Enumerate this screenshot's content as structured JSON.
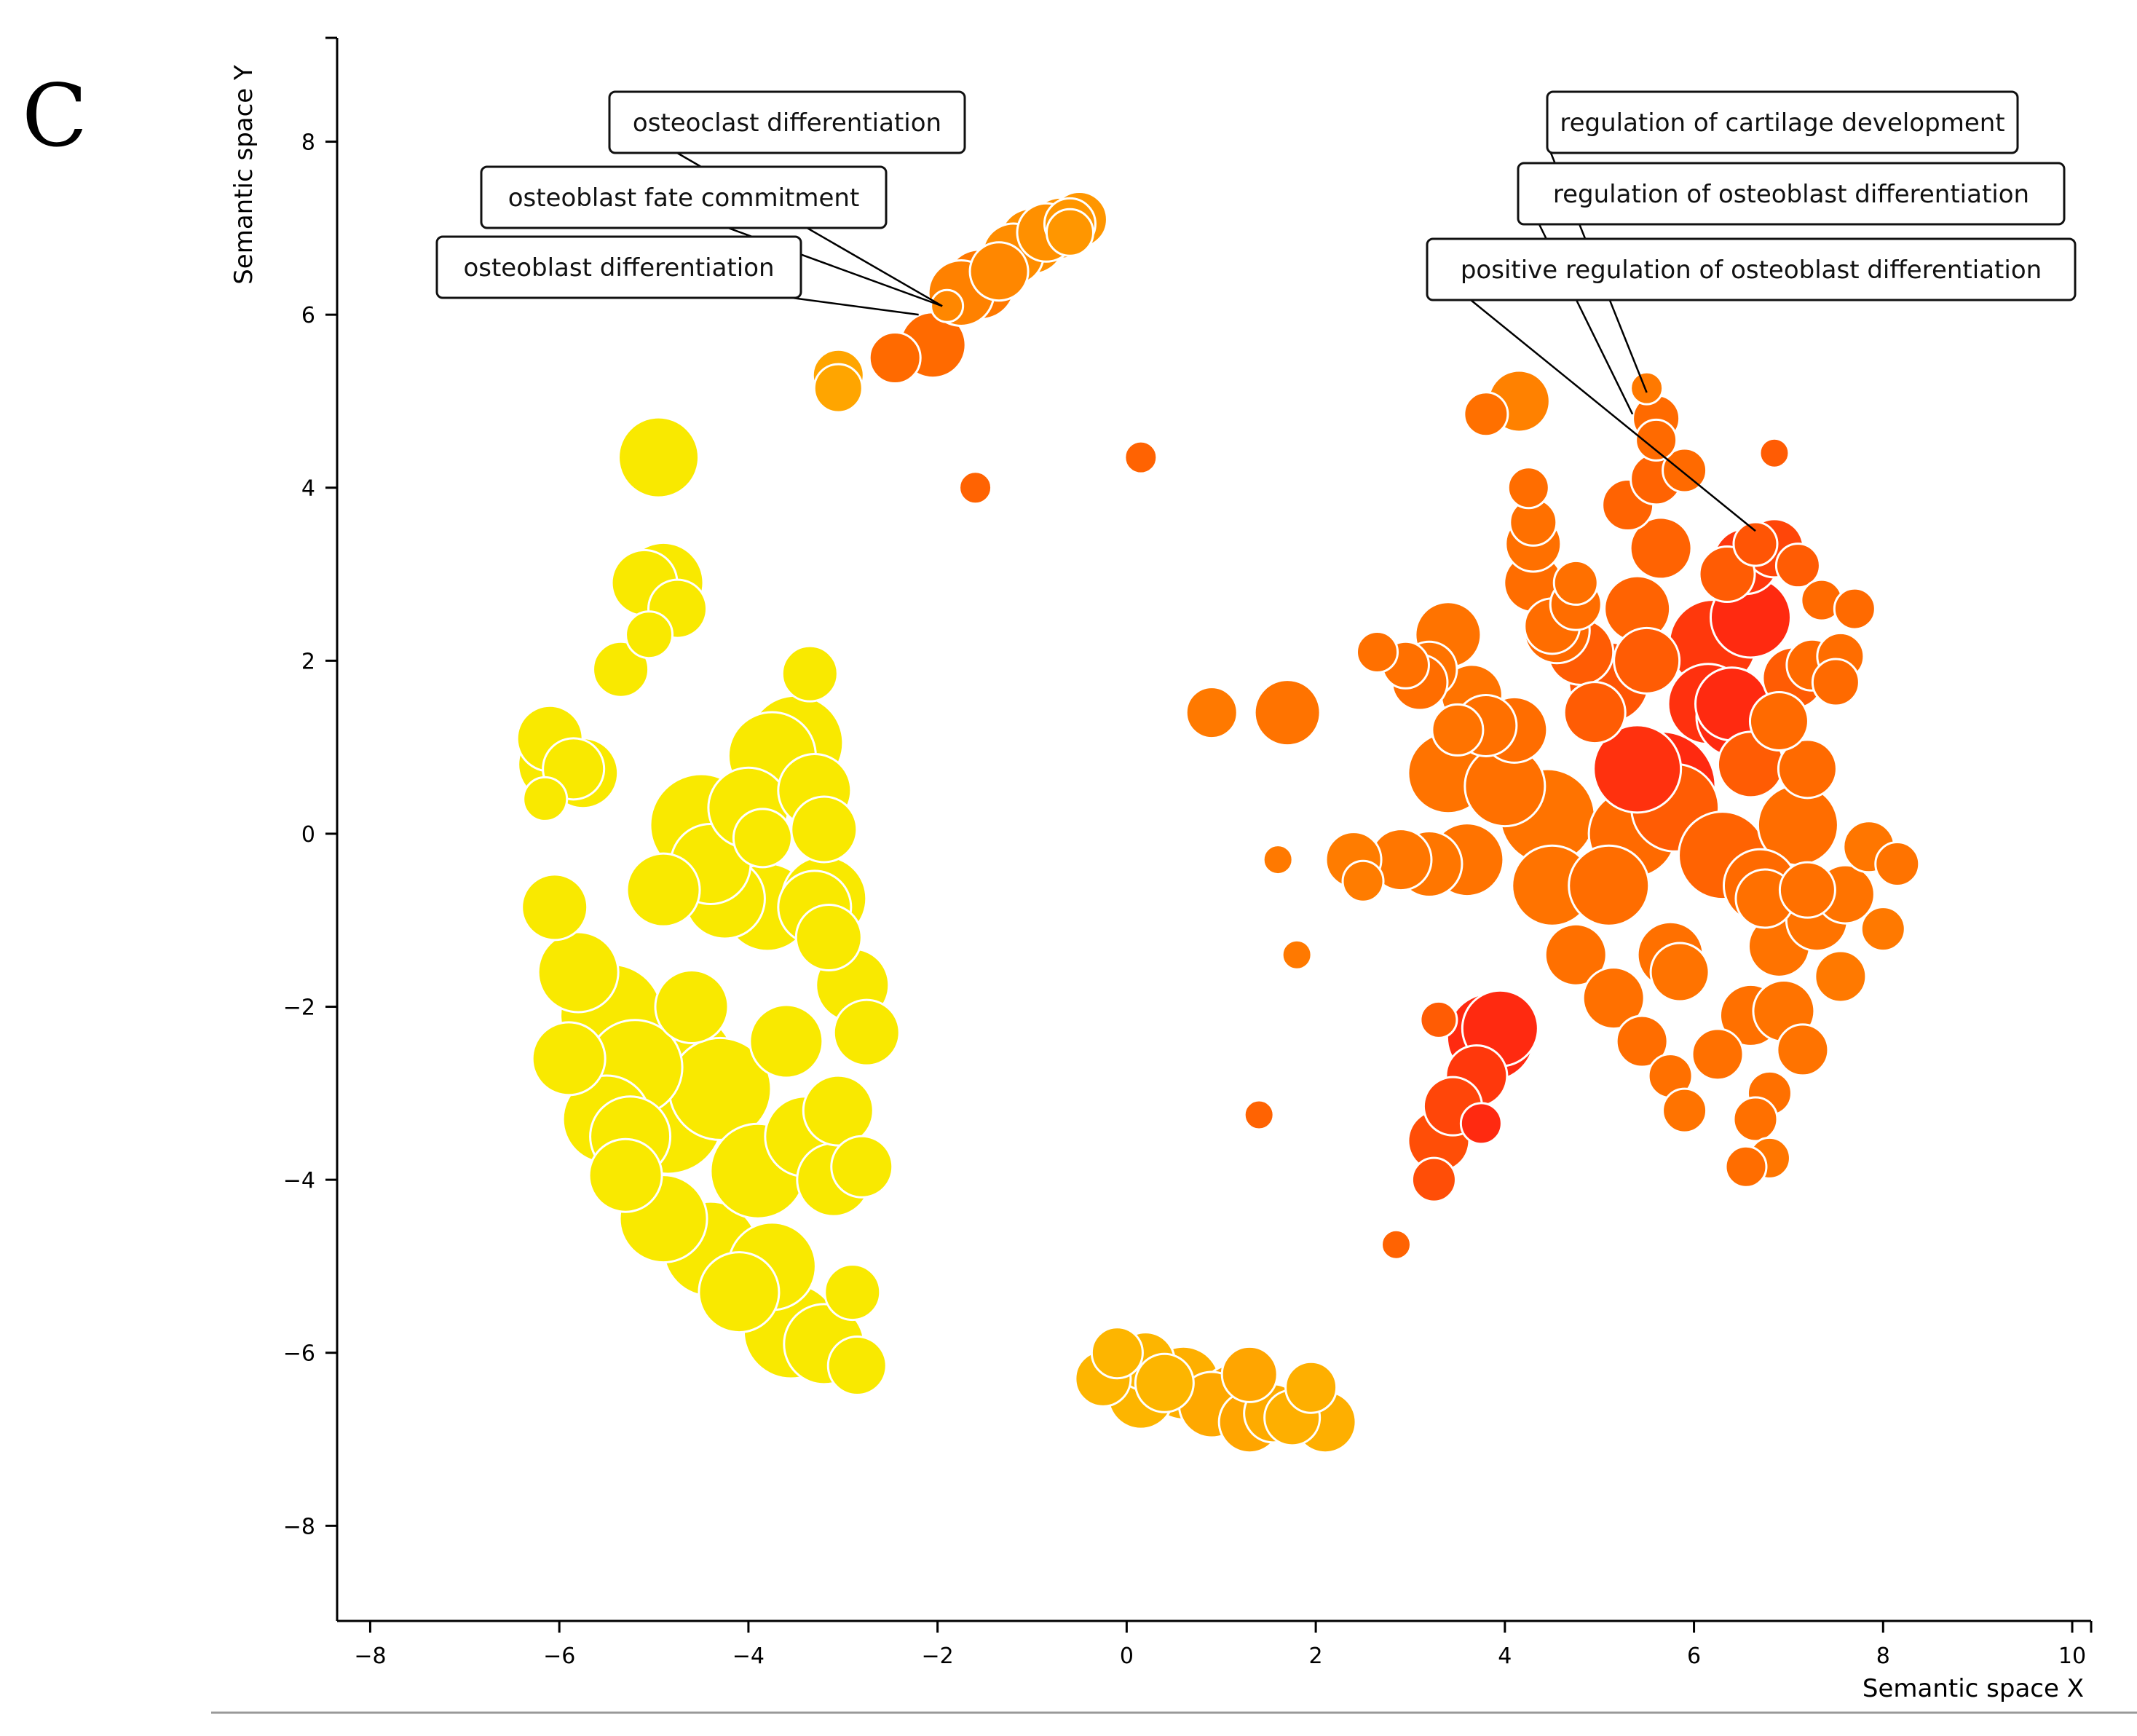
{
  "panel_label": "C",
  "chart_data": {
    "type": "scatter",
    "xlabel": "Semantic space X",
    "ylabel": "Semantic space Y",
    "xlim": [
      -8.35,
      10.2
    ],
    "ylim": [
      -9.1,
      9.2
    ],
    "x_ticks": [
      -8,
      -6,
      -4,
      -2,
      0,
      2,
      4,
      6,
      8,
      10
    ],
    "y_ticks": [
      -8,
      -6,
      -4,
      -2,
      0,
      2,
      4,
      6,
      8
    ],
    "grid": false,
    "color_scale": {
      "low": "#f9e900",
      "mid": "#ffa000",
      "high": "#ff6a00",
      "top": "#ff2a10"
    },
    "annotations": [
      {
        "text": "osteoclast differentiation",
        "x": -1.95,
        "y": 6.1
      },
      {
        "text": "osteoblast fate commitment",
        "x": -1.95,
        "y": 6.1
      },
      {
        "text": "osteoblast differentiation",
        "x": -2.2,
        "y": 6.0
      },
      {
        "text": "regulation of cartilage development",
        "x": 5.5,
        "y": 5.1
      },
      {
        "text": "regulation of osteoblast differentiation",
        "x": 5.35,
        "y": 4.85
      },
      {
        "text": "positive regulation of osteoblast differentiation",
        "x": 6.65,
        "y": 3.5
      }
    ],
    "points": [
      [
        -4.95,
        4.35,
        55,
        0.0
      ],
      [
        -5.1,
        2.9,
        45,
        0.0
      ],
      [
        -4.75,
        2.6,
        40,
        0.0
      ],
      [
        -4.9,
        2.9,
        55,
        0.0
      ],
      [
        -5.35,
        1.9,
        38,
        0.0
      ],
      [
        -5.05,
        2.3,
        32,
        0.0
      ],
      [
        -3.35,
        1.85,
        38,
        0.0
      ],
      [
        -6.1,
        1.1,
        45,
        0.0
      ],
      [
        -6.05,
        0.8,
        50,
        0.0
      ],
      [
        -5.85,
        0.75,
        42,
        0.0
      ],
      [
        -6.15,
        0.4,
        30,
        0.0
      ],
      [
        -5.75,
        0.7,
        48,
        0.0
      ],
      [
        -6.05,
        -0.85,
        45,
        0.0
      ],
      [
        -5.8,
        -1.6,
        55,
        0.0
      ],
      [
        -5.9,
        -2.6,
        50,
        0.0
      ],
      [
        -5.45,
        -2.1,
        70,
        0.0
      ],
      [
        -5.2,
        -2.7,
        65,
        0.0
      ],
      [
        -5.5,
        -3.3,
        60,
        0.0
      ],
      [
        -5.3,
        -3.95,
        50,
        0.0
      ],
      [
        -4.85,
        -3.3,
        75,
        0.0
      ],
      [
        -4.75,
        -2.7,
        80,
        0.0
      ],
      [
        -4.9,
        -4.45,
        60,
        0.0
      ],
      [
        -4.4,
        -4.8,
        65,
        0.0
      ],
      [
        -4.1,
        -5.3,
        55,
        0.0
      ],
      [
        -3.75,
        -5.0,
        60,
        0.0
      ],
      [
        -3.55,
        -5.75,
        65,
        0.0
      ],
      [
        -3.2,
        -5.9,
        55,
        0.0
      ],
      [
        -2.85,
        -6.15,
        40,
        0.0
      ],
      [
        -2.9,
        -5.3,
        38,
        0.0
      ],
      [
        -4.3,
        -2.95,
        70,
        0.0
      ],
      [
        -3.9,
        -3.9,
        65,
        0.0
      ],
      [
        -3.4,
        -3.5,
        55,
        0.0
      ],
      [
        -3.1,
        -4.0,
        50,
        0.0
      ],
      [
        -2.8,
        -3.85,
        42,
        0.0
      ],
      [
        -3.05,
        -3.2,
        48,
        0.0
      ],
      [
        -3.6,
        -2.4,
        50,
        0.0
      ],
      [
        -2.75,
        -2.3,
        45,
        0.0
      ],
      [
        -2.9,
        -1.75,
        50,
        0.0
      ],
      [
        -3.15,
        -1.2,
        45,
        0.0
      ],
      [
        -3.3,
        -0.85,
        50,
        0.0
      ],
      [
        -3.8,
        -0.85,
        60,
        0.0
      ],
      [
        -4.25,
        -0.75,
        55,
        0.0
      ],
      [
        -4.9,
        -0.65,
        50,
        0.0
      ],
      [
        -4.4,
        -0.35,
        55,
        0.0
      ],
      [
        -4.5,
        0.1,
        70,
        0.0
      ],
      [
        -4.0,
        0.3,
        55,
        0.0
      ],
      [
        -3.75,
        0.9,
        60,
        0.0
      ],
      [
        -3.5,
        1.05,
        65,
        0.0
      ],
      [
        -3.3,
        0.5,
        50,
        0.0
      ],
      [
        -3.2,
        0.05,
        45,
        0.0
      ],
      [
        -3.85,
        -0.05,
        40,
        0.0
      ],
      [
        -3.2,
        -0.75,
        58,
        0.0
      ],
      [
        -5.25,
        -3.5,
        55,
        0.0
      ],
      [
        -4.6,
        -2.0,
        50,
        0.0
      ],
      [
        -3.05,
        5.3,
        35,
        0.42
      ],
      [
        -3.05,
        5.15,
        33,
        0.42
      ],
      [
        -2.45,
        5.5,
        35,
        0.82
      ],
      [
        -2.05,
        5.65,
        45,
        0.82
      ],
      [
        -1.9,
        6.1,
        22,
        0.62
      ],
      [
        -1.75,
        6.25,
        45,
        0.66
      ],
      [
        -1.55,
        6.35,
        48,
        0.72
      ],
      [
        -1.35,
        6.5,
        40,
        0.62
      ],
      [
        -1.2,
        6.7,
        42,
        0.58
      ],
      [
        -1.0,
        6.85,
        45,
        0.56
      ],
      [
        -0.85,
        6.95,
        40,
        0.56
      ],
      [
        -0.7,
        7.0,
        42,
        0.54
      ],
      [
        -0.6,
        7.05,
        35,
        0.52
      ],
      [
        -0.5,
        7.1,
        38,
        0.52
      ],
      [
        -0.6,
        6.95,
        32,
        0.52
      ],
      [
        -1.6,
        4.0,
        22,
        0.84
      ],
      [
        0.15,
        4.35,
        22,
        0.84
      ],
      [
        -0.25,
        -6.3,
        38,
        0.32
      ],
      [
        -0.1,
        -6.0,
        35,
        0.32
      ],
      [
        0.2,
        -6.1,
        40,
        0.32
      ],
      [
        0.4,
        -6.35,
        40,
        0.32
      ],
      [
        0.15,
        -6.5,
        45,
        0.32
      ],
      [
        0.6,
        -6.35,
        50,
        0.36
      ],
      [
        0.9,
        -6.6,
        45,
        0.4
      ],
      [
        1.15,
        -6.55,
        50,
        0.44
      ],
      [
        1.3,
        -6.8,
        42,
        0.42
      ],
      [
        1.55,
        -6.7,
        40,
        0.38
      ],
      [
        1.75,
        -6.75,
        38,
        0.36
      ],
      [
        2.1,
        -6.8,
        42,
        0.36
      ],
      [
        1.95,
        -6.4,
        35,
        0.36
      ],
      [
        1.3,
        -6.25,
        38,
        0.42
      ],
      [
        1.4,
        -3.25,
        20,
        0.84
      ],
      [
        2.85,
        -4.75,
        20,
        0.84
      ],
      [
        1.8,
        -1.4,
        20,
        0.72
      ],
      [
        1.6,
        -0.3,
        20,
        0.72
      ],
      [
        0.9,
        1.4,
        35,
        0.72
      ],
      [
        1.7,
        1.4,
        45,
        0.76
      ],
      [
        3.85,
        -2.35,
        60,
        1.0
      ],
      [
        3.95,
        -2.25,
        52,
        1.0
      ],
      [
        3.7,
        -2.8,
        42,
        0.96
      ],
      [
        3.45,
        -3.15,
        40,
        0.92
      ],
      [
        3.3,
        -3.55,
        42,
        0.9
      ],
      [
        3.25,
        -4.0,
        30,
        0.9
      ],
      [
        3.75,
        -3.35,
        28,
        1.0
      ],
      [
        3.3,
        -2.15,
        25,
        0.86
      ],
      [
        2.4,
        -0.3,
        38,
        0.7
      ],
      [
        2.5,
        -0.55,
        28,
        0.7
      ],
      [
        2.9,
        -0.3,
        42,
        0.74
      ],
      [
        3.2,
        -0.35,
        45,
        0.74
      ],
      [
        3.6,
        -0.3,
        50,
        0.76
      ],
      [
        3.4,
        0.7,
        55,
        0.76
      ],
      [
        4.0,
        0.55,
        55,
        0.78
      ],
      [
        4.45,
        0.2,
        65,
        0.76
      ],
      [
        4.5,
        -0.6,
        55,
        0.76
      ],
      [
        4.75,
        -1.4,
        42,
        0.78
      ],
      [
        5.15,
        -1.9,
        42,
        0.78
      ],
      [
        5.45,
        -2.4,
        35,
        0.8
      ],
      [
        5.75,
        -1.4,
        45,
        0.78
      ],
      [
        5.85,
        -1.6,
        40,
        0.76
      ],
      [
        5.75,
        -2.8,
        30,
        0.78
      ],
      [
        5.9,
        -3.2,
        30,
        0.76
      ],
      [
        6.25,
        -2.55,
        35,
        0.78
      ],
      [
        6.6,
        -2.1,
        42,
        0.78
      ],
      [
        6.95,
        -2.05,
        42,
        0.76
      ],
      [
        7.15,
        -2.5,
        35,
        0.76
      ],
      [
        6.8,
        -3.0,
        30,
        0.78
      ],
      [
        6.65,
        -3.3,
        30,
        0.78
      ],
      [
        6.8,
        -3.75,
        28,
        0.74
      ],
      [
        6.55,
        -3.85,
        28,
        0.8
      ],
      [
        6.9,
        -1.3,
        42,
        0.76
      ],
      [
        7.3,
        -1.0,
        42,
        0.76
      ],
      [
        7.6,
        -0.7,
        40,
        0.76
      ],
      [
        7.55,
        -1.65,
        35,
        0.72
      ],
      [
        8.0,
        -1.1,
        30,
        0.72
      ],
      [
        7.85,
        -0.15,
        35,
        0.74
      ],
      [
        8.15,
        -0.35,
        30,
        0.76
      ],
      [
        5.1,
        -0.6,
        55,
        0.8
      ],
      [
        5.35,
        0.0,
        60,
        0.82
      ],
      [
        5.8,
        0.3,
        60,
        0.86
      ],
      [
        6.3,
        -0.25,
        60,
        0.84
      ],
      [
        6.7,
        -0.6,
        50,
        0.82
      ],
      [
        7.1,
        0.1,
        55,
        0.8
      ],
      [
        6.75,
        -0.75,
        40,
        0.78
      ],
      [
        7.2,
        0.75,
        40,
        0.82
      ],
      [
        6.9,
        1.3,
        40,
        0.82
      ],
      [
        5.65,
        0.55,
        75,
        1.0
      ],
      [
        5.4,
        0.75,
        60,
        0.98
      ],
      [
        6.15,
        1.5,
        55,
        0.98
      ],
      [
        6.45,
        1.35,
        55,
        1.0
      ],
      [
        6.6,
        2.5,
        55,
        1.0
      ],
      [
        6.2,
        2.2,
        60,
        0.96
      ],
      [
        6.55,
        3.15,
        45,
        0.96
      ],
      [
        6.85,
        3.3,
        40,
        0.92
      ],
      [
        6.65,
        3.35,
        30,
        0.88
      ],
      [
        7.1,
        3.1,
        30,
        0.86
      ],
      [
        7.35,
        2.7,
        28,
        0.82
      ],
      [
        7.7,
        2.6,
        28,
        0.82
      ],
      [
        7.55,
        2.05,
        32,
        0.8
      ],
      [
        7.25,
        1.95,
        35,
        0.82
      ],
      [
        7.5,
        1.75,
        32,
        0.82
      ],
      [
        7.05,
        1.8,
        42,
        0.86
      ],
      [
        6.85,
        4.4,
        20,
        0.86
      ],
      [
        5.3,
        3.8,
        35,
        0.84
      ],
      [
        5.65,
        3.3,
        42,
        0.84
      ],
      [
        5.4,
        2.6,
        45,
        0.84
      ],
      [
        5.5,
        2.0,
        45,
        0.86
      ],
      [
        5.1,
        1.75,
        55,
        0.88
      ],
      [
        4.8,
        2.1,
        45,
        0.86
      ],
      [
        4.95,
        1.4,
        42,
        0.86
      ],
      [
        4.55,
        2.35,
        45,
        0.82
      ],
      [
        4.3,
        2.9,
        40,
        0.8
      ],
      [
        4.5,
        2.4,
        38,
        0.8
      ],
      [
        4.75,
        2.65,
        35,
        0.8
      ],
      [
        4.3,
        3.35,
        38,
        0.78
      ],
      [
        4.3,
        3.6,
        32,
        0.78
      ],
      [
        4.25,
        4.0,
        28,
        0.8
      ],
      [
        4.75,
        2.9,
        30,
        0.78
      ],
      [
        4.15,
        5.0,
        42,
        0.66
      ],
      [
        3.8,
        4.85,
        30,
        0.78
      ],
      [
        5.5,
        5.15,
        22,
        0.72
      ],
      [
        5.6,
        4.8,
        32,
        0.82
      ],
      [
        5.6,
        4.55,
        28,
        0.82
      ],
      [
        5.6,
        4.1,
        35,
        0.84
      ],
      [
        5.9,
        4.2,
        30,
        0.82
      ],
      [
        6.35,
        3.0,
        38,
        0.86
      ],
      [
        3.4,
        2.3,
        45,
        0.76
      ],
      [
        3.2,
        1.9,
        38,
        0.76
      ],
      [
        2.65,
        2.1,
        28,
        0.78
      ],
      [
        2.95,
        1.95,
        32,
        0.78
      ],
      [
        3.1,
        1.75,
        38,
        0.8
      ],
      [
        3.65,
        1.6,
        42,
        0.76
      ],
      [
        3.8,
        1.25,
        42,
        0.78
      ],
      [
        4.1,
        1.2,
        45,
        0.8
      ],
      [
        3.5,
        1.2,
        35,
        0.76
      ],
      [
        6.6,
        0.8,
        45,
        0.86
      ],
      [
        7.2,
        -0.65,
        38,
        0.78
      ],
      [
        6.4,
        1.5,
        50,
        1.0
      ]
    ]
  }
}
